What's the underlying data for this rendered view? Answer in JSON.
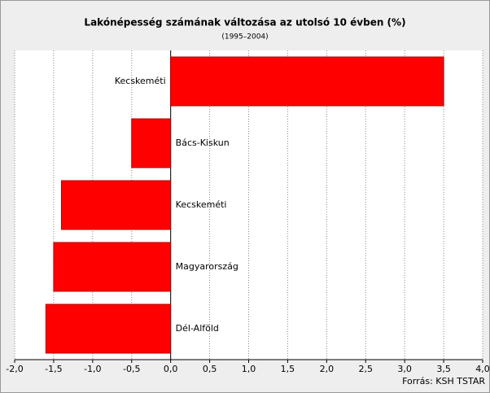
{
  "chart_data": {
    "type": "hbar",
    "title": "Lakónépesség számának változása az utolsó 10 évben (%)",
    "subtitle": "(1995–2004)",
    "source": "Forrás: KSH TSTAR",
    "categories": [
      "Kecskeméti",
      "Bács-Kiskun",
      "Kecskeméti",
      "Magyarország",
      "Dél-Alföld"
    ],
    "values": [
      3.5,
      -0.5,
      -1.4,
      -1.5,
      -1.6
    ],
    "color": "#ff0000",
    "xlim": [
      -2,
      4
    ],
    "xticks": [
      {
        "value": -2,
        "label": "-2,0"
      },
      {
        "value": -1.5,
        "label": "-1,5"
      },
      {
        "value": -1,
        "label": "-1,0"
      },
      {
        "value": -0.5,
        "label": "-0,5"
      },
      {
        "value": 0,
        "label": "0,0"
      },
      {
        "value": 0.5,
        "label": "0,5"
      },
      {
        "value": 1,
        "label": "1,0"
      },
      {
        "value": 1.5,
        "label": "1,5"
      },
      {
        "value": 2,
        "label": "2,0"
      },
      {
        "value": 2.5,
        "label": "2,5"
      },
      {
        "value": 3,
        "label": "3,0"
      },
      {
        "value": 3.5,
        "label": "3,5"
      },
      {
        "value": 4,
        "label": "4,0"
      }
    ],
    "grid": true
  }
}
